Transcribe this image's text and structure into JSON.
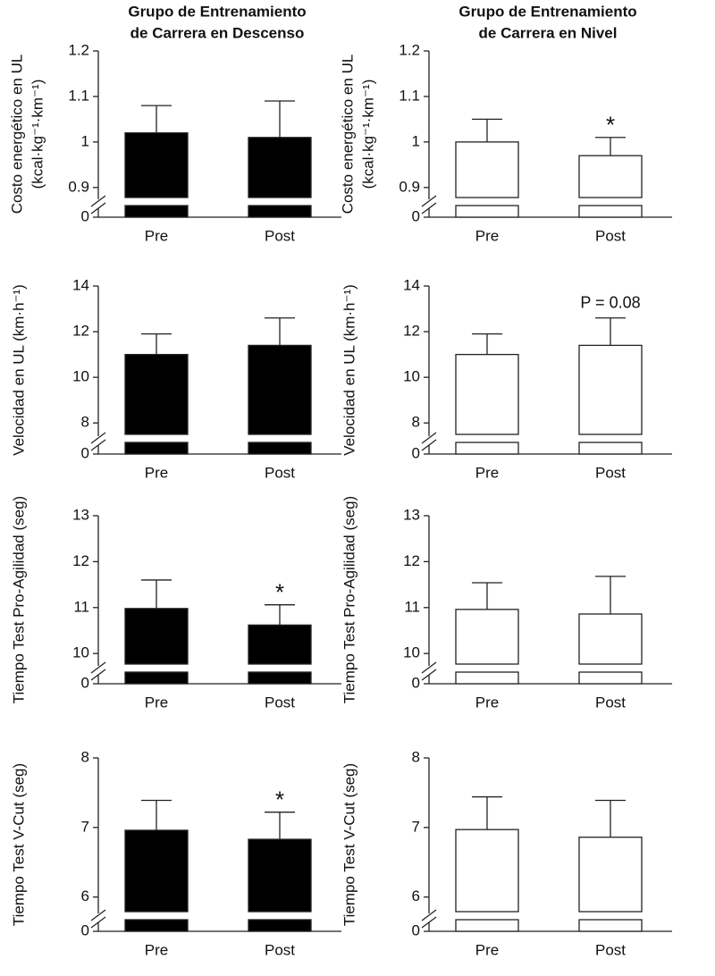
{
  "chart_data": [
    {
      "type": "bar",
      "title": [
        "Grupo de Entrenamiento",
        "de Carrera en Descenso"
      ],
      "ylabel": [
        "Costo energético en UL",
        "(kcal·kg⁻¹·km⁻¹)"
      ],
      "categories": [
        "Pre",
        "Post"
      ],
      "values": [
        1.02,
        1.01
      ],
      "errors": [
        0.06,
        0.08
      ],
      "color": "#000000",
      "ylim": [
        0.878,
        1.2
      ],
      "yticks": [
        0,
        0.9,
        1,
        1.1,
        1.2
      ],
      "axis_break": true
    },
    {
      "type": "bar",
      "title": [
        "Grupo de Entrenamiento",
        "de Carrera en Nivel"
      ],
      "ylabel": [
        "Costo energético en UL",
        "(kcal·kg⁻¹·km⁻¹)"
      ],
      "categories": [
        "Pre",
        "Post"
      ],
      "values": [
        1.0,
        0.97
      ],
      "errors": [
        0.05,
        0.04
      ],
      "color": "#ffffff",
      "ylim": [
        0.878,
        1.2
      ],
      "yticks": [
        0,
        0.9,
        1,
        1.1,
        1.2
      ],
      "axis_break": true,
      "annotation": {
        "category": "Post",
        "text": "*"
      }
    },
    {
      "type": "bar",
      "ylabel": [
        "Velocidad en UL (km·h⁻¹)"
      ],
      "categories": [
        "Pre",
        "Post"
      ],
      "values": [
        11.0,
        11.4
      ],
      "errors": [
        0.9,
        1.2
      ],
      "color": "#000000",
      "ylim": [
        7.5,
        14
      ],
      "yticks": [
        0,
        8,
        10,
        12,
        14
      ],
      "axis_break": true
    },
    {
      "type": "bar",
      "ylabel": [
        "Velocidad en UL (km·h⁻¹)"
      ],
      "categories": [
        "Pre",
        "Post"
      ],
      "values": [
        11.0,
        11.4
      ],
      "errors": [
        0.9,
        1.2
      ],
      "color": "#ffffff",
      "ylim": [
        7.5,
        14
      ],
      "yticks": [
        0,
        8,
        10,
        12,
        14
      ],
      "axis_break": true,
      "annotation": {
        "category": "Post",
        "text": "P = 0.08"
      }
    },
    {
      "type": "bar",
      "ylabel": [
        "Tiempo Test Pro-Agilidad (seg)"
      ],
      "categories": [
        "Pre",
        "Post"
      ],
      "values": [
        10.98,
        10.62
      ],
      "errors": [
        0.62,
        0.44
      ],
      "color": "#000000",
      "ylim": [
        9.77,
        13
      ],
      "yticks": [
        0,
        10,
        11,
        12,
        13
      ],
      "axis_break": true,
      "annotation": {
        "category": "Post",
        "text": "*"
      }
    },
    {
      "type": "bar",
      "ylabel": [
        "Tiempo Test Pro-Agilidad (seg)"
      ],
      "categories": [
        "Pre",
        "Post"
      ],
      "values": [
        10.96,
        10.86
      ],
      "errors": [
        0.58,
        0.82
      ],
      "color": "#ffffff",
      "ylim": [
        9.77,
        13
      ],
      "yticks": [
        0,
        10,
        11,
        12,
        13
      ],
      "axis_break": true
    },
    {
      "type": "bar",
      "ylabel": [
        "Tiempo Test V-Cut (seg)"
      ],
      "categories": [
        "Pre",
        "Post"
      ],
      "values": [
        6.96,
        6.83
      ],
      "errors": [
        0.43,
        0.39
      ],
      "color": "#000000",
      "ylim": [
        5.79,
        8
      ],
      "yticks": [
        0,
        6,
        7,
        8
      ],
      "axis_break": true,
      "annotation": {
        "category": "Post",
        "text": "*"
      }
    },
    {
      "type": "bar",
      "ylabel": [
        "Tiempo Test V-Cut (seg)"
      ],
      "categories": [
        "Pre",
        "Post"
      ],
      "values": [
        6.97,
        6.86
      ],
      "errors": [
        0.47,
        0.53
      ],
      "color": "#ffffff",
      "ylim": [
        5.79,
        8
      ],
      "yticks": [
        0,
        6,
        7,
        8
      ],
      "axis_break": true
    }
  ]
}
